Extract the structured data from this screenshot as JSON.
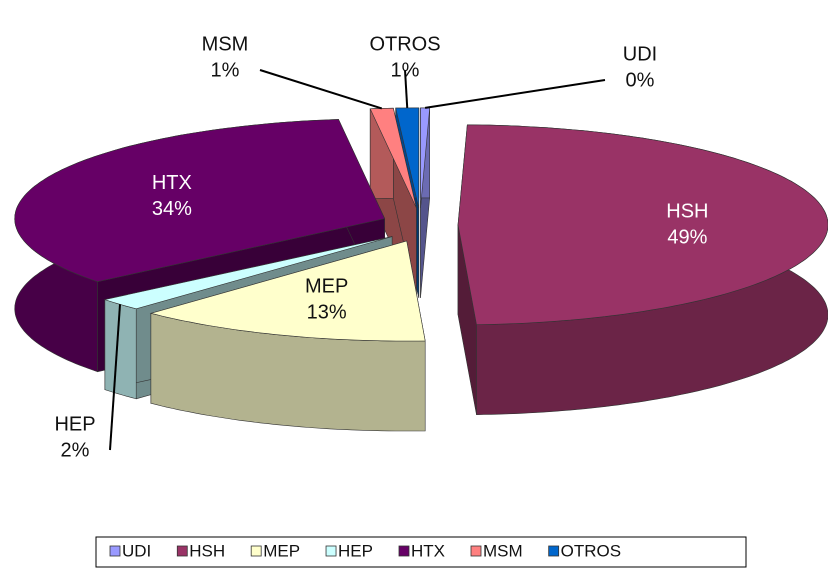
{
  "chart_data": {
    "type": "pie3d",
    "categories": [
      "UDI",
      "HSH",
      "MEP",
      "HEP",
      "HTX",
      "MSM",
      "OTROS"
    ],
    "values": [
      0.4,
      49,
      13,
      2,
      34,
      1,
      1
    ],
    "value_labels": [
      "0%",
      "49%",
      "13%",
      "2%",
      "34%",
      "1%",
      "1%"
    ],
    "colors": [
      "#9999ff",
      "#993366",
      "#ffffcc",
      "#ccffff",
      "#660066",
      "#ff8080",
      "#0066cc"
    ],
    "legend": "bottom"
  }
}
